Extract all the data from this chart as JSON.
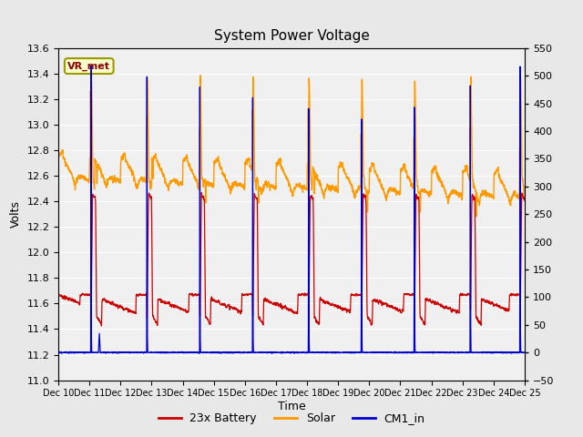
{
  "title": "System Power Voltage",
  "xlabel": "Time",
  "ylabel": "Volts",
  "ylim_left": [
    11.0,
    13.6
  ],
  "ylim_right": [
    -50,
    550
  ],
  "x_ticks": [
    "Dec 10",
    "Dec 11",
    "Dec 12",
    "Dec 13",
    "Dec 14",
    "Dec 15",
    "Dec 16",
    "Dec 17",
    "Dec 18",
    "Dec 19",
    "Dec 20",
    "Dec 21",
    "Dec 22",
    "Dec 23",
    "Dec 24",
    "Dec 25"
  ],
  "x_tick_positions": [
    0,
    1,
    2,
    3,
    4,
    5,
    6,
    7,
    8,
    9,
    10,
    11,
    12,
    13,
    14,
    15
  ],
  "yticks_left": [
    11.0,
    11.2,
    11.4,
    11.6,
    11.8,
    12.0,
    12.2,
    12.4,
    12.6,
    12.8,
    13.0,
    13.2,
    13.4,
    13.6
  ],
  "yticks_right": [
    -50,
    0,
    50,
    100,
    150,
    200,
    250,
    300,
    350,
    400,
    450,
    500,
    550
  ],
  "bg_color": "#e8e8e8",
  "plot_bg_color": "#f0f0f0",
  "grid_color": "#ffffff",
  "battery_color": "#cc0000",
  "solar_color": "#ff9900",
  "cm1_color": "#0000cc",
  "legend_items": [
    "23x Battery",
    "Solar",
    "CM1_in"
  ],
  "vr_met_label": "VR_met",
  "vr_met_bg": "#ffffcc",
  "vr_met_border": "#999900",
  "figsize": [
    6.4,
    4.8
  ],
  "dpi": 100
}
